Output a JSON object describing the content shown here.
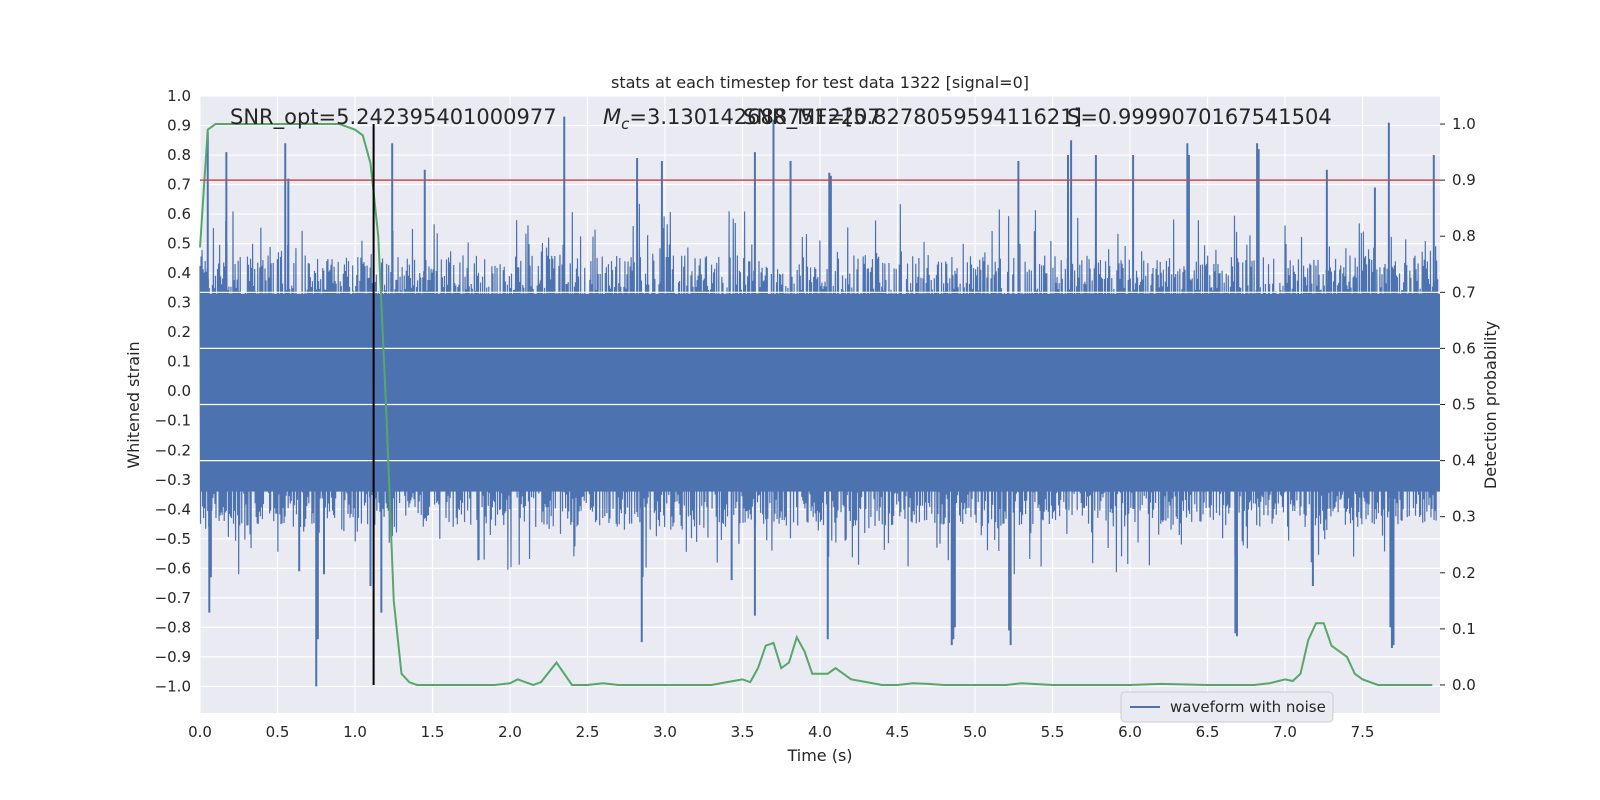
{
  "chart_data": {
    "type": "line",
    "title": "stats at each timestep for test data 1322 [signal=0]",
    "xlabel": "Time (s)",
    "ylabel": "Whitened strain",
    "y2label": "Detection probability",
    "xlim": [
      0.0,
      8.0
    ],
    "ylim": [
      -1.09,
      1.0
    ],
    "y2lim": [
      -0.05,
      1.05
    ],
    "x_ticks": [
      "0.0",
      "0.5",
      "1.0",
      "1.5",
      "2.0",
      "2.5",
      "3.0",
      "3.5",
      "4.0",
      "4.5",
      "5.0",
      "5.5",
      "6.0",
      "6.5",
      "7.0",
      "7.5"
    ],
    "y_ticks": [
      "1.0",
      "0.9",
      "0.8",
      "0.7",
      "0.6",
      "0.5",
      "0.4",
      "0.3",
      "0.2",
      "0.1",
      "0.0",
      "−0.1",
      "−0.2",
      "−0.3",
      "−0.4",
      "−0.5",
      "−0.6",
      "−0.7",
      "−0.8",
      "−0.9",
      "−1.0"
    ],
    "y2_ticks": [
      "1.0",
      "0.9",
      "0.8",
      "0.7",
      "0.6",
      "0.5",
      "0.4",
      "0.3",
      "0.2",
      "0.1",
      "0.0"
    ],
    "grid": true,
    "legend_position": "lower-right",
    "annotations": {
      "snr": "SNR_opt=5.242395401000977",
      "mc_symbol": "M",
      "mc_sub": "c",
      "mc_value": "=3.1301426887512207",
      "snr_mf": "SNR_MF=[5.827805959411621]",
      "s_value": "S=0.9999070167541504"
    },
    "threshold": {
      "value": 0.9,
      "axis": "right",
      "color": "#c44e52"
    },
    "event_marker": {
      "x": 1.12,
      "color": "#000000"
    },
    "series": [
      {
        "name": "waveform with noise",
        "axis": "left",
        "color": "#4c72b0",
        "rendering": "dense noise trace (about 2000 samples), core amplitude within ±0.3 to ±0.5",
        "spikes_up": [
          [
            0.05,
            0.88
          ],
          [
            0.17,
            0.81
          ],
          [
            0.55,
            0.84
          ],
          [
            0.57,
            0.72
          ],
          [
            1.24,
            0.84
          ],
          [
            1.45,
            0.75
          ],
          [
            2.35,
            0.93
          ],
          [
            2.82,
            0.79
          ],
          [
            2.98,
            0.78
          ],
          [
            3.7,
            0.92
          ],
          [
            3.58,
            0.81
          ],
          [
            3.81,
            0.78
          ],
          [
            4.06,
            0.74
          ],
          [
            4.07,
            0.73
          ],
          [
            5.28,
            0.78
          ],
          [
            5.6,
            0.8
          ],
          [
            5.62,
            0.85
          ],
          [
            5.78,
            0.8
          ],
          [
            6.02,
            0.8
          ],
          [
            6.37,
            0.84
          ],
          [
            6.38,
            0.8
          ],
          [
            6.82,
            0.84
          ],
          [
            6.83,
            0.82
          ],
          [
            7.27,
            0.75
          ],
          [
            7.58,
            0.69
          ],
          [
            7.67,
            0.91
          ],
          [
            7.96,
            0.8
          ]
        ],
        "spikes_down": [
          [
            0.06,
            -0.75
          ],
          [
            0.07,
            -0.63
          ],
          [
            0.64,
            -0.61
          ],
          [
            0.75,
            -1.0
          ],
          [
            0.76,
            -0.84
          ],
          [
            0.8,
            -0.62
          ],
          [
            1.1,
            -0.66
          ],
          [
            1.17,
            -0.75
          ],
          [
            2.85,
            -0.85
          ],
          [
            3.58,
            -0.76
          ],
          [
            3.43,
            -0.64
          ],
          [
            4.05,
            -0.84
          ],
          [
            4.85,
            -0.86
          ],
          [
            4.86,
            -0.84
          ],
          [
            4.87,
            -0.8
          ],
          [
            5.23,
            -0.86
          ],
          [
            5.22,
            -0.81
          ],
          [
            6.68,
            -0.82
          ],
          [
            6.69,
            -0.83
          ],
          [
            7.18,
            -0.66
          ],
          [
            7.68,
            -0.8
          ],
          [
            7.69,
            -0.87
          ],
          [
            7.7,
            -0.86
          ]
        ]
      },
      {
        "name": "",
        "axis": "right",
        "color": "#55a868",
        "x": [
          0.0,
          0.05,
          0.1,
          0.2,
          0.3,
          0.4,
          0.5,
          0.6,
          0.7,
          0.8,
          0.9,
          1.0,
          1.05,
          1.1,
          1.15,
          1.2,
          1.25,
          1.3,
          1.35,
          1.4,
          1.5,
          1.6,
          1.7,
          1.8,
          1.9,
          2.0,
          2.05,
          2.1,
          2.15,
          2.2,
          2.3,
          2.4,
          2.5,
          2.6,
          2.7,
          2.8,
          2.9,
          3.0,
          3.1,
          3.2,
          3.3,
          3.4,
          3.5,
          3.55,
          3.6,
          3.65,
          3.7,
          3.75,
          3.8,
          3.85,
          3.9,
          3.95,
          4.0,
          4.05,
          4.1,
          4.15,
          4.2,
          4.3,
          4.4,
          4.5,
          4.6,
          4.7,
          4.8,
          4.9,
          5.0,
          5.2,
          5.3,
          5.5,
          5.7,
          6.0,
          6.2,
          6.5,
          6.8,
          6.9,
          7.0,
          7.05,
          7.1,
          7.15,
          7.2,
          7.25,
          7.3,
          7.35,
          7.4,
          7.45,
          7.5,
          7.6,
          7.7,
          7.8,
          7.9,
          7.95
        ],
        "y": [
          0.78,
          0.99,
          1.0,
          1.0,
          1.0,
          1.0,
          1.0,
          1.0,
          1.0,
          1.0,
          1.0,
          0.99,
          0.98,
          0.93,
          0.8,
          0.5,
          0.15,
          0.02,
          0.005,
          0.0,
          0.0,
          0.0,
          0.0,
          0.0,
          0.0,
          0.003,
          0.01,
          0.005,
          0.0,
          0.005,
          0.04,
          0.0,
          0.0,
          0.003,
          0.0,
          0.0,
          0.0,
          0.0,
          0.0,
          0.0,
          0.0,
          0.005,
          0.01,
          0.005,
          0.03,
          0.07,
          0.075,
          0.03,
          0.04,
          0.085,
          0.06,
          0.02,
          0.02,
          0.02,
          0.03,
          0.02,
          0.01,
          0.005,
          0.0,
          0.0,
          0.003,
          0.002,
          0.0,
          0.0,
          0.0,
          0.0,
          0.003,
          0.0,
          0.0,
          0.0,
          0.002,
          0.0,
          0.0,
          0.003,
          0.01,
          0.007,
          0.02,
          0.08,
          0.11,
          0.11,
          0.07,
          0.06,
          0.05,
          0.02,
          0.01,
          0.0,
          0.0,
          0.0,
          0.0,
          0.0
        ]
      }
    ]
  }
}
